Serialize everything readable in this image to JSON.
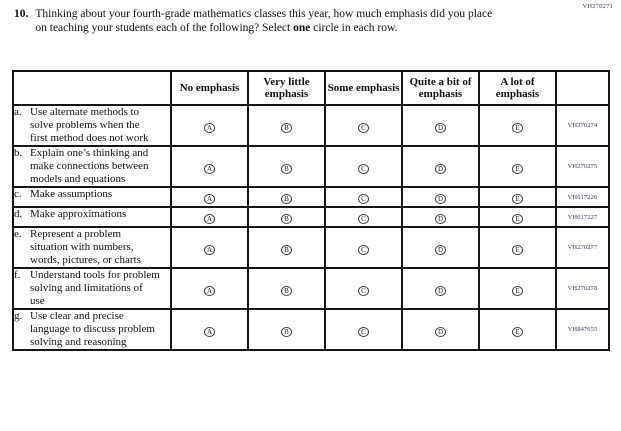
{
  "page": {
    "form_code": "VH270271"
  },
  "question": {
    "number": "10.",
    "text_start": "Thinking about your fourth-grade mathematics classes this year, how much emphasis did you place on teaching your students each of the following? Select ",
    "bold_word": "one",
    "text_end": " circle in each row."
  },
  "table": {
    "columns": [
      "No emphasis",
      "Very little emphasis",
      "Some emphasis",
      "Quite a bit of emphasis",
      "A lot of emphasis"
    ],
    "options": [
      "A",
      "B",
      "C",
      "D",
      "E"
    ],
    "rows": [
      {
        "letter": "a.",
        "label": "Use alternate methods to solve problems when the first method does not work",
        "code": "VH270274"
      },
      {
        "letter": "b.",
        "label": "Explain one’s thinking and make connections between models and equations",
        "code": "VH270275"
      },
      {
        "letter": "c.",
        "label": "Make assumptions",
        "code": "VH617226"
      },
      {
        "letter": "d.",
        "label": "Make approximations",
        "code": "VH617227"
      },
      {
        "letter": "e.",
        "label": "Represent a problem situation with numbers, words, pictures, or charts",
        "code": "VH270277"
      },
      {
        "letter": "f.",
        "label": "Understand tools for problem solving and limitations of use",
        "code": "VH270278"
      },
      {
        "letter": "g.",
        "label": "Use clear and precise language to discuss problem solving and reasoning",
        "code": "VH847655"
      }
    ]
  }
}
